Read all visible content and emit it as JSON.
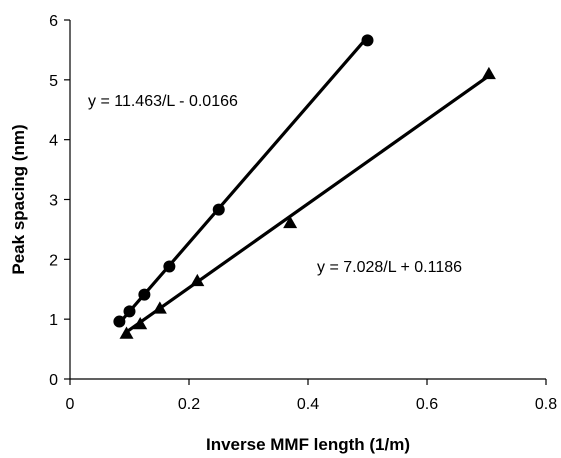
{
  "chart_data": {
    "type": "scatter",
    "xlabel": "Inverse MMF length (1/m)",
    "ylabel": "Peak spacing (nm)",
    "xlim": [
      0,
      0.8
    ],
    "ylim": [
      0,
      6
    ],
    "x_ticks": [
      "0",
      "0.2",
      "0.4",
      "0.6",
      "0.8"
    ],
    "y_ticks": [
      "0",
      "1",
      "2",
      "3",
      "4",
      "5",
      "6"
    ],
    "grid": false,
    "series": [
      {
        "marker": "circle",
        "color": "#000000",
        "points": [
          {
            "x": 0.083,
            "y": 0.96
          },
          {
            "x": 0.1,
            "y": 1.13
          },
          {
            "x": 0.125,
            "y": 1.41
          },
          {
            "x": 0.167,
            "y": 1.88
          },
          {
            "x": 0.25,
            "y": 2.83
          },
          {
            "x": 0.5,
            "y": 5.66
          }
        ],
        "fit": {
          "slope": 11.463,
          "intercept": -0.0166,
          "x_range": [
            0.083,
            0.5
          ]
        },
        "annotation": "y = 11.463/L - 0.0166"
      },
      {
        "marker": "triangle",
        "color": "#000000",
        "points": [
          {
            "x": 0.095,
            "y": 0.76
          },
          {
            "x": 0.118,
            "y": 0.92
          },
          {
            "x": 0.151,
            "y": 1.18
          },
          {
            "x": 0.214,
            "y": 1.64
          },
          {
            "x": 0.37,
            "y": 2.61
          },
          {
            "x": 0.704,
            "y": 5.1
          }
        ],
        "fit": {
          "slope": 7.028,
          "intercept": 0.1186,
          "x_range": [
            0.095,
            0.704
          ]
        },
        "annotation": "y = 7.028/L + 0.1186"
      }
    ]
  }
}
